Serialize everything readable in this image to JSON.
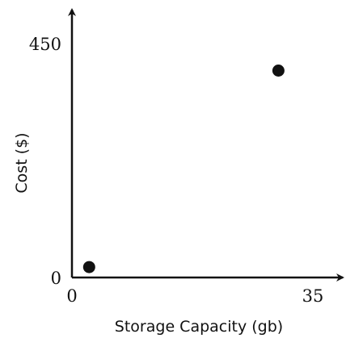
{
  "chart_data": {
    "type": "scatter",
    "title": "",
    "xlabel": "Storage Capacity (gb)",
    "ylabel": "Cost ($)",
    "xlim": [
      0,
      35
    ],
    "ylim": [
      0,
      450
    ],
    "x_ticks": [
      "0",
      "35"
    ],
    "y_ticks": [
      "0",
      "450"
    ],
    "grid": false,
    "legend": "none",
    "marker_color": "#111111",
    "axis_color": "#111111",
    "points": [
      {
        "x": 2.5,
        "y": 20
      },
      {
        "x": 30,
        "y": 398
      }
    ]
  }
}
